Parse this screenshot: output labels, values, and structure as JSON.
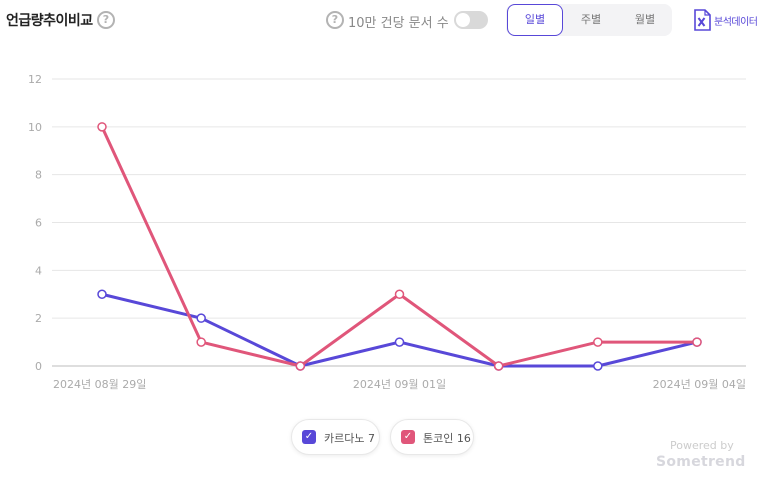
{
  "header": {
    "title": "언급량추이비교",
    "help_glyph": "?",
    "toggle_label": "10만 건당 문서 수",
    "toggle_on": false,
    "period_tabs": [
      {
        "label": "일별",
        "active": true
      },
      {
        "label": "주별",
        "active": false
      },
      {
        "label": "월별",
        "active": false
      }
    ],
    "excel_label": "분석데이터",
    "excel_icon": "excel-download-icon"
  },
  "chart_data": {
    "type": "line",
    "y_ticks": [
      "12",
      "10",
      "8",
      "6",
      "4",
      "2",
      "0"
    ],
    "ylim": [
      0,
      12
    ],
    "x_points": 7,
    "x_tick_labels": [
      {
        "index": 0,
        "label": "2024년 08월 29일"
      },
      {
        "index": 3,
        "label": "2024년 09월 01일"
      },
      {
        "index": 6,
        "label": "2024년 09월 04일"
      }
    ],
    "grid": true,
    "series": [
      {
        "name": "카르다노",
        "color": "#5848d8",
        "values": [
          3,
          2,
          0,
          1,
          0,
          0,
          1
        ]
      },
      {
        "name": "톤코인",
        "color": "#e0567a",
        "values": [
          10,
          1,
          0,
          3,
          0,
          1,
          1
        ]
      }
    ]
  },
  "legend": [
    {
      "label": "카르다노 7",
      "color": "#5848d8"
    },
    {
      "label": "톤코인 16",
      "color": "#e0567a"
    }
  ],
  "footer": {
    "powered_by": "Powered by",
    "brand": "Sometrend"
  }
}
